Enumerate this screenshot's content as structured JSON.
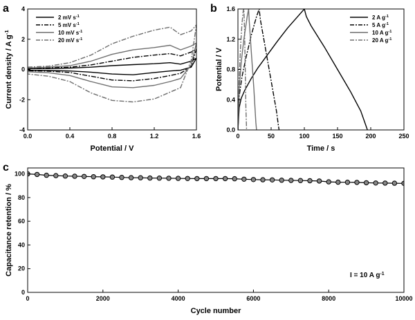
{
  "chart_data": [
    {
      "panel": "a",
      "type": "line",
      "xlabel": "Potential / V",
      "ylabel": "Current density / A g⁻¹",
      "xlim": [
        0.0,
        1.6
      ],
      "ylim": [
        -4,
        4
      ],
      "x_ticks": [
        "0.0",
        "0.4",
        "0.8",
        "1.2",
        "1.6"
      ],
      "y_ticks": [
        "-4",
        "-2",
        "0",
        "2",
        "4"
      ],
      "legend_position": "top-left",
      "series": [
        {
          "name": "2 mV s⁻¹",
          "color": "#000000",
          "dash": "solid",
          "x": [
            0,
            0.2,
            0.4,
            0.6,
            0.8,
            1.0,
            1.2,
            1.35,
            1.45,
            1.55,
            1.6,
            1.55,
            1.45,
            1.35,
            1.2,
            1.0,
            0.8,
            0.6,
            0.4,
            0.2,
            0,
            0
          ],
          "y": [
            0.05,
            0.06,
            0.09,
            0.15,
            0.25,
            0.32,
            0.38,
            0.45,
            0.35,
            0.55,
            0.75,
            0.15,
            -0.05,
            -0.1,
            -0.2,
            -0.35,
            -0.3,
            -0.18,
            -0.1,
            -0.07,
            -0.05,
            0.05
          ]
        },
        {
          "name": "5 mV s⁻¹",
          "color": "#000000",
          "dash": "dashdot",
          "x": [
            0,
            0.2,
            0.4,
            0.6,
            0.8,
            1.0,
            1.2,
            1.35,
            1.45,
            1.55,
            1.6,
            1.55,
            1.45,
            1.35,
            1.2,
            1.0,
            0.8,
            0.6,
            0.4,
            0.2,
            0,
            0
          ],
          "y": [
            0.08,
            0.1,
            0.15,
            0.3,
            0.55,
            0.8,
            0.95,
            1.05,
            0.9,
            1.15,
            1.35,
            0.2,
            -0.25,
            -0.4,
            -0.6,
            -0.75,
            -0.7,
            -0.45,
            -0.2,
            -0.12,
            -0.08,
            0.08
          ]
        },
        {
          "name": "10 mV s⁻¹",
          "color": "#6e6e6e",
          "dash": "solid",
          "x": [
            0,
            0.2,
            0.4,
            0.6,
            0.8,
            1.0,
            1.2,
            1.35,
            1.45,
            1.55,
            1.6,
            1.55,
            1.45,
            1.35,
            1.2,
            1.0,
            0.8,
            0.6,
            0.4,
            0.2,
            0,
            0
          ],
          "y": [
            0.1,
            0.15,
            0.25,
            0.55,
            1.0,
            1.3,
            1.45,
            1.6,
            1.3,
            1.55,
            1.75,
            0.3,
            -0.6,
            -0.8,
            -1.05,
            -1.2,
            -1.15,
            -0.8,
            -0.4,
            -0.22,
            -0.15,
            0.1
          ]
        },
        {
          "name": "20 mV s⁻¹",
          "color": "#6e6e6e",
          "dash": "dashdot",
          "x": [
            0,
            0.2,
            0.4,
            0.6,
            0.8,
            1.0,
            1.2,
            1.35,
            1.45,
            1.55,
            1.6,
            1.55,
            1.45,
            1.35,
            1.2,
            1.0,
            0.8,
            0.6,
            0.4,
            0.2,
            0,
            0
          ],
          "y": [
            0.15,
            0.22,
            0.45,
            0.95,
            1.7,
            2.2,
            2.6,
            2.8,
            2.3,
            2.55,
            2.95,
            0.6,
            -1.2,
            -1.5,
            -1.95,
            -2.15,
            -2.05,
            -1.55,
            -0.8,
            -0.45,
            -0.3,
            0.15
          ]
        }
      ]
    },
    {
      "panel": "b",
      "type": "line",
      "xlabel": "Time / s",
      "ylabel": "Potential / V",
      "xlim": [
        0,
        250
      ],
      "ylim": [
        0.0,
        1.6
      ],
      "x_ticks": [
        "0",
        "50",
        "100",
        "150",
        "200",
        "250"
      ],
      "y_ticks": [
        "0.0",
        "0.4",
        "0.8",
        "1.2",
        "1.6"
      ],
      "legend_position": "top-right",
      "series": [
        {
          "name": "2 A g⁻¹",
          "color": "#000000",
          "dash": "solid",
          "x": [
            0,
            2,
            5,
            10,
            20,
            30,
            45,
            60,
            75,
            90,
            100,
            103,
            110,
            130,
            150,
            170,
            185,
            193,
            195
          ],
          "y": [
            0,
            0.3,
            0.42,
            0.52,
            0.68,
            0.82,
            1.0,
            1.18,
            1.35,
            1.5,
            1.6,
            1.5,
            1.38,
            1.1,
            0.8,
            0.5,
            0.25,
            0.05,
            0
          ]
        },
        {
          "name": "5 A g⁻¹",
          "color": "#000000",
          "dash": "dashdot",
          "x": [
            0,
            2,
            6,
            12,
            20,
            28,
            32,
            34,
            40,
            50,
            58,
            61,
            62
          ],
          "y": [
            0,
            0.45,
            0.7,
            0.95,
            1.25,
            1.5,
            1.6,
            1.45,
            1.15,
            0.65,
            0.25,
            0.05,
            0
          ]
        },
        {
          "name": "10 A g⁻¹",
          "color": "#6e6e6e",
          "dash": "solid",
          "x": [
            0,
            2,
            5,
            9,
            14,
            16,
            17,
            20,
            24,
            27,
            28
          ],
          "y": [
            0,
            0.55,
            0.9,
            1.2,
            1.5,
            1.6,
            1.45,
            1.05,
            0.55,
            0.1,
            0
          ]
        },
        {
          "name": "20 A g⁻¹",
          "color": "#6e6e6e",
          "dash": "dashdot",
          "x": [
            0,
            2,
            4,
            6,
            8,
            9,
            10,
            11,
            12,
            13
          ],
          "y": [
            0,
            0.7,
            1.1,
            1.4,
            1.58,
            1.6,
            1.3,
            0.8,
            0.3,
            0
          ]
        }
      ]
    },
    {
      "panel": "c",
      "type": "scatter",
      "xlabel": "Cycle number",
      "ylabel": "Capacitance retention / %",
      "xlim": [
        0,
        10000
      ],
      "ylim": [
        0,
        105
      ],
      "x_ticks": [
        "0",
        "2000",
        "4000",
        "6000",
        "8000",
        "10000"
      ],
      "y_ticks": [
        "0",
        "20",
        "40",
        "60",
        "80",
        "100"
      ],
      "annotation": "I = 10 A g⁻¹",
      "series": [
        {
          "name": "",
          "color": "#000000",
          "marker": "circle",
          "x": [
            0,
            250,
            500,
            750,
            1000,
            1250,
            1500,
            1750,
            2000,
            2250,
            2500,
            2750,
            3000,
            3250,
            3500,
            3750,
            4000,
            4250,
            4500,
            4750,
            5000,
            5250,
            5500,
            5750,
            6000,
            6250,
            6500,
            6750,
            7000,
            7250,
            7500,
            7750,
            8000,
            8250,
            8500,
            8750,
            9000,
            9250,
            9500,
            9750,
            10000
          ],
          "y": [
            100,
            99.5,
            98.8,
            98.5,
            98.2,
            98.0,
            97.8,
            97.6,
            97.5,
            97.3,
            97.0,
            96.8,
            96.7,
            96.5,
            96.4,
            96.3,
            96.2,
            96.1,
            96.0,
            96.0,
            96.0,
            96.0,
            95.9,
            95.5,
            95.2,
            95.0,
            94.9,
            94.7,
            94.5,
            94.4,
            94.2,
            94.0,
            93.3,
            93.0,
            92.9,
            92.8,
            92.5,
            92.3,
            92.2,
            92.1,
            92.0
          ]
        }
      ]
    }
  ]
}
